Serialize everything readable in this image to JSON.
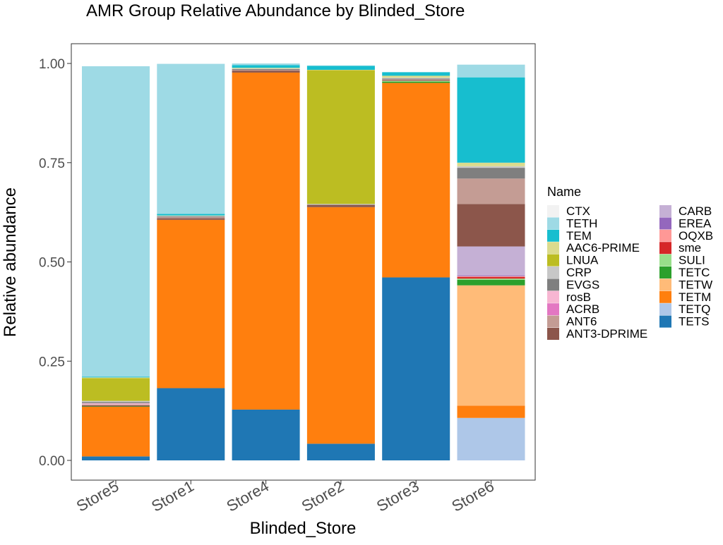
{
  "chart_data": {
    "type": "bar",
    "stacked": true,
    "title": "AMR Group Relative Abundance by Blinded_Store",
    "xlabel": "Blinded_Store",
    "ylabel": "Relative abundance",
    "ylim": [
      0,
      1.05
    ],
    "yticks": [
      "0.00",
      "0.25",
      "0.50",
      "0.75",
      "1.00"
    ],
    "categories": [
      "Store5",
      "Store1",
      "Store4",
      "Store2",
      "Store3",
      "Store6"
    ],
    "legend": {
      "title": "Name",
      "placement": "right"
    },
    "series": [
      {
        "name": "TETS",
        "color": "#1f77b4",
        "values": [
          0.01,
          0.182,
          0.128,
          0.042,
          0.461,
          0.0
        ]
      },
      {
        "name": "TETQ",
        "color": "#aec7e8",
        "values": [
          0.0,
          0.0,
          0.0,
          0.0,
          0.0,
          0.107
        ]
      },
      {
        "name": "TETM",
        "color": "#ff7f0e",
        "values": [
          0.125,
          0.424,
          0.849,
          0.596,
          0.49,
          0.031
        ]
      },
      {
        "name": "TETW",
        "color": "#ffbb78",
        "values": [
          0.0,
          0.0,
          0.0,
          0.0,
          0.0,
          0.303
        ]
      },
      {
        "name": "TETC",
        "color": "#2ca02c",
        "values": [
          0.001,
          0.0,
          0.0,
          0.0,
          0.003,
          0.014
        ]
      },
      {
        "name": "SULI",
        "color": "#98df8a",
        "values": [
          0.0,
          0.0,
          0.0,
          0.0,
          0.002,
          0.003
        ]
      },
      {
        "name": "sme",
        "color": "#d62728",
        "values": [
          0.0,
          0.0,
          0.0,
          0.0,
          0.0,
          0.004
        ]
      },
      {
        "name": "OQXB",
        "color": "#ff9896",
        "values": [
          0.0,
          0.0,
          0.0,
          0.0,
          0.0,
          0.002
        ]
      },
      {
        "name": "EREA",
        "color": "#9467bd",
        "values": [
          0.0,
          0.0,
          0.0,
          0.0,
          0.0,
          0.002
        ]
      },
      {
        "name": "CARB",
        "color": "#c5b0d5",
        "values": [
          0.0,
          0.0,
          0.0,
          0.0,
          0.0,
          0.073
        ]
      },
      {
        "name": "ANT3-DPRIME",
        "color": "#8c564b",
        "values": [
          0.003,
          0.004,
          0.005,
          0.005,
          0.002,
          0.107
        ]
      },
      {
        "name": "ANT6",
        "color": "#c49c94",
        "values": [
          0.002,
          0.003,
          0.002,
          0.001,
          0.002,
          0.064
        ]
      },
      {
        "name": "ACRB",
        "color": "#e377c2",
        "values": [
          0.0,
          0.0,
          0.0,
          0.0,
          0.0,
          0.0
        ]
      },
      {
        "name": "rosB",
        "color": "#f7b6d2",
        "values": [
          0.003,
          0.0,
          0.0,
          0.0,
          0.0,
          0.0
        ]
      },
      {
        "name": "EVGS",
        "color": "#7f7f7f",
        "values": [
          0.003,
          0.002,
          0.002,
          0.001,
          0.002,
          0.027
        ]
      },
      {
        "name": "CRP",
        "color": "#c7c7c7",
        "values": [
          0.003,
          0.001,
          0.001,
          0.001,
          0.002,
          0.004
        ]
      },
      {
        "name": "LNUA",
        "color": "#bcbd22",
        "values": [
          0.057,
          0.0,
          0.0,
          0.337,
          0.0,
          0.0
        ]
      },
      {
        "name": "AAC6-PRIME",
        "color": "#dbdb8d",
        "values": [
          0.002,
          0.001,
          0.002,
          0.001,
          0.005,
          0.009
        ]
      },
      {
        "name": "TEM",
        "color": "#17becf",
        "values": [
          0.002,
          0.004,
          0.007,
          0.01,
          0.009,
          0.215
        ]
      },
      {
        "name": "TETH",
        "color": "#9edae5",
        "values": [
          0.782,
          0.378,
          0.004,
          0.001,
          0.0,
          0.032
        ]
      },
      {
        "name": "CTX",
        "color": "#f2f2f2",
        "values": [
          0.0,
          0.0,
          0.0,
          0.0,
          0.0,
          0.0
        ]
      }
    ],
    "legend_order": [
      "CTX",
      "TETH",
      "TEM",
      "AAC6-PRIME",
      "LNUA",
      "CRP",
      "EVGS",
      "rosB",
      "ACRB",
      "ANT6",
      "ANT3-DPRIME",
      "CARB",
      "EREA",
      "OQXB",
      "sme",
      "SULI",
      "TETC",
      "TETW",
      "TETM",
      "TETQ",
      "TETS"
    ]
  }
}
